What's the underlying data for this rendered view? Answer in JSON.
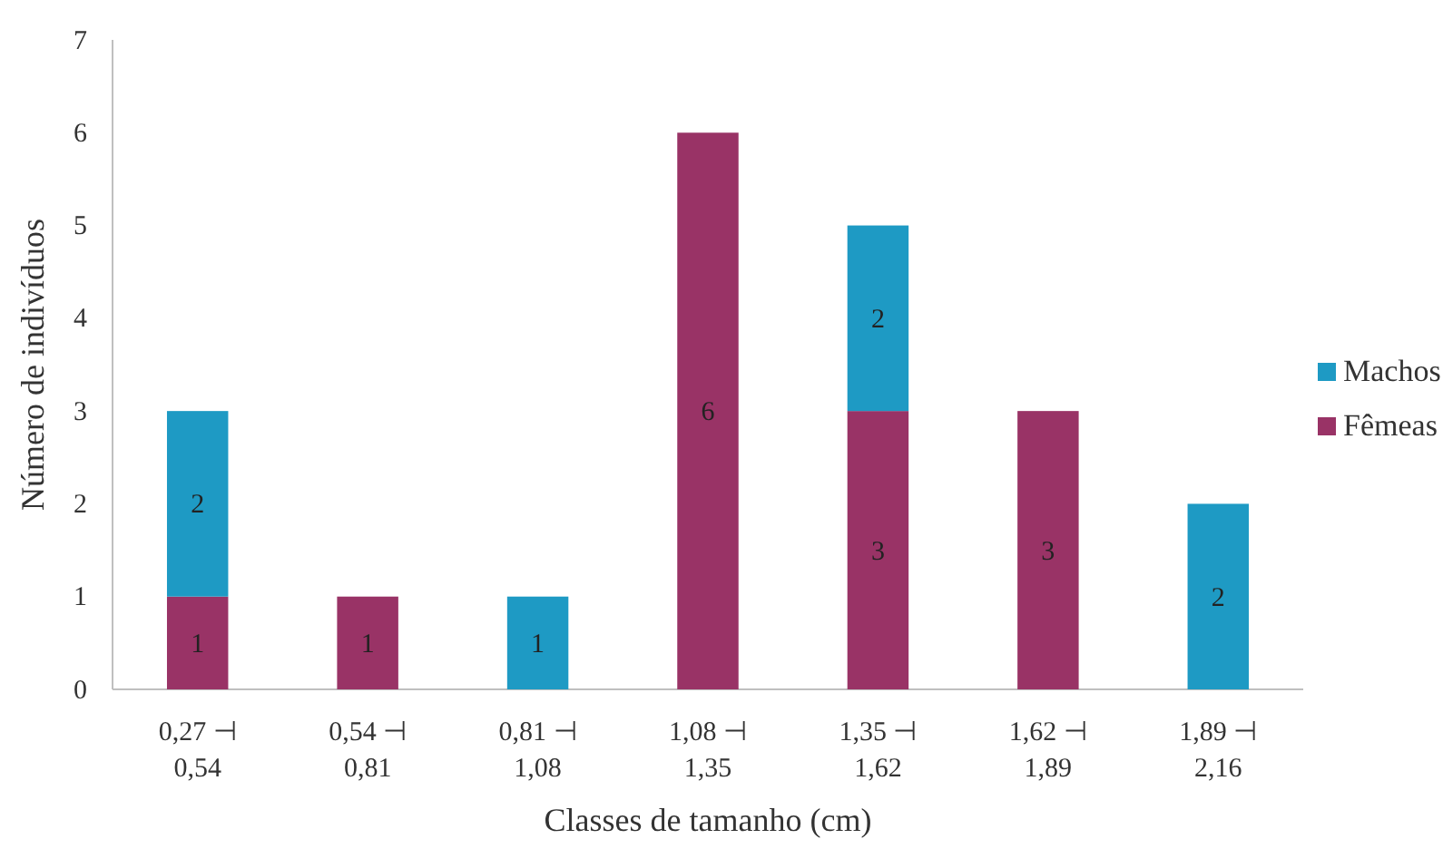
{
  "chart_data": {
    "type": "bar",
    "stacked": true,
    "xlabel": "Classes de tamanho (cm)",
    "ylabel": "Número de indivíduos",
    "categories": [
      "0,27 ⊣\n0,54",
      "0,54 ⊣\n0,81",
      "0,81 ⊣\n1,08",
      "1,08 ⊣\n1,35",
      "1,35 ⊣\n1,62",
      "1,62 ⊣\n1,89",
      "1,89 ⊣\n2,16"
    ],
    "series": [
      {
        "name": "Fêmeas",
        "color": "#993366",
        "values": [
          1,
          1,
          null,
          6,
          3,
          3,
          null
        ]
      },
      {
        "name": "Machos",
        "color": "#1e9ac4",
        "values": [
          2,
          null,
          1,
          null,
          2,
          null,
          2
        ]
      }
    ],
    "ylim": [
      0,
      7
    ],
    "yticks": [
      0,
      1,
      2,
      3,
      4,
      5,
      6,
      7
    ],
    "data_labels": true,
    "legend": "right",
    "grid": false
  }
}
